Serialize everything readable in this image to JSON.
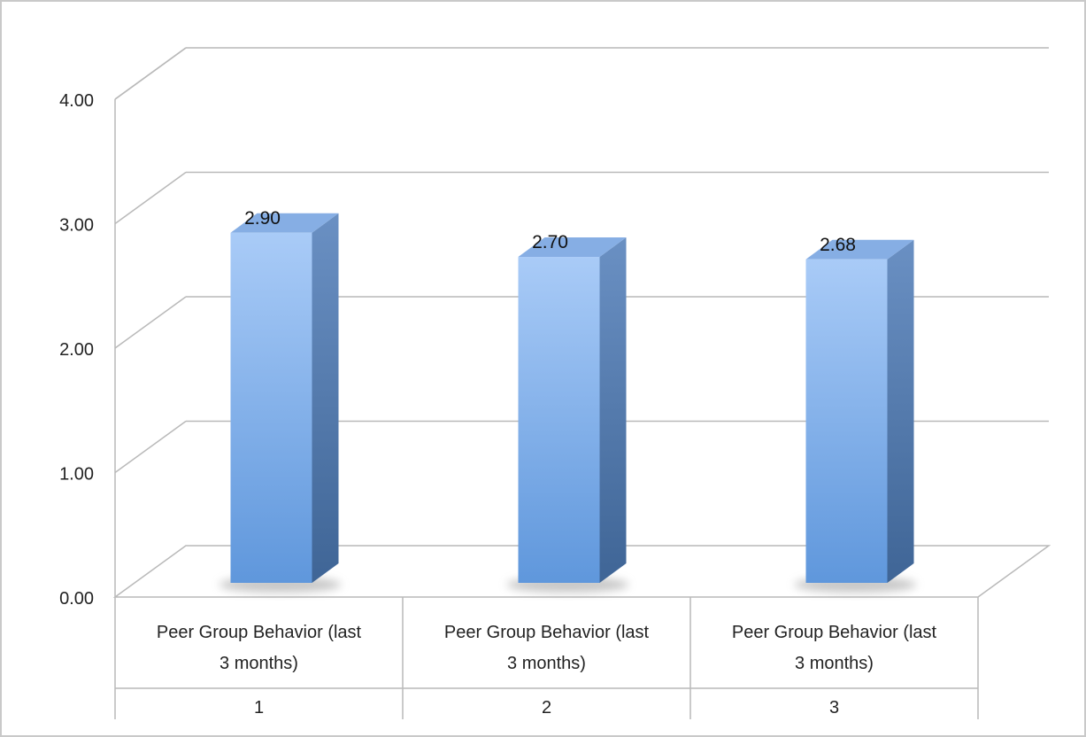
{
  "chart_data": {
    "type": "bar",
    "style": "3d-column",
    "categories": [
      {
        "label_lines": [
          "Peer Group Behavior (last",
          "3 months)"
        ],
        "group": "1"
      },
      {
        "label_lines": [
          "Peer Group Behavior (last",
          "3 months)"
        ],
        "group": "2"
      },
      {
        "label_lines": [
          "Peer Group Behavior (last",
          "3 months)"
        ],
        "group": "3"
      }
    ],
    "values": [
      2.9,
      2.7,
      2.68
    ],
    "data_labels": [
      "2.90",
      "2.70",
      "2.68"
    ],
    "y_ticks": [
      "0.00",
      "1.00",
      "2.00",
      "3.00",
      "4.00"
    ],
    "ylim": [
      0,
      4
    ],
    "grid": true,
    "legend": "none",
    "colors": {
      "bar_front_top": "#a9cbf7",
      "bar_front_bottom": "#5f97dc",
      "bar_side": "#4a75aa",
      "bar_top": "#86aee4",
      "gridline": "#b9b9b9"
    }
  }
}
